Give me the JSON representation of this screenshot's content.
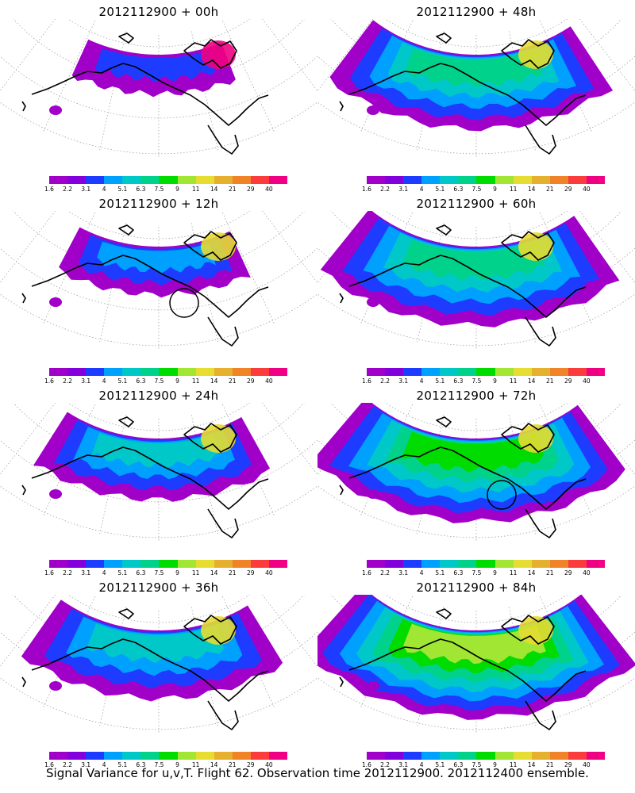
{
  "palette": [
    "#a000c8",
    "#8200dc",
    "#1e3cff",
    "#00a0ff",
    "#00c8c8",
    "#00d28c",
    "#00dc00",
    "#a0e632",
    "#e6dc32",
    "#e6af2d",
    "#f08228",
    "#fa3c3c",
    "#f00082"
  ],
  "colorbar_labels": [
    "1.6",
    "2.2",
    "3.1",
    "4",
    "5.1",
    "6.3",
    "7.5",
    "9",
    "11",
    "14",
    "21",
    "29",
    "40"
  ],
  "footer": "Signal Variance for u,v,T. Flight 62. Observation time 2012112900. 2012112400 ensemble.",
  "panels": [
    {
      "title": "2012112900 + 00h",
      "spread": 0.45,
      "level": 0.05,
      "max_level": 12,
      "observation_circle": false
    },
    {
      "title": "2012112900 + 48h",
      "spread": 0.85,
      "level": 0.35,
      "max_level": 8,
      "observation_circle": false
    },
    {
      "title": "2012112900 + 12h",
      "spread": 0.55,
      "level": 0.12,
      "max_level": 8,
      "observation_circle": true
    },
    {
      "title": "2012112900 + 60h",
      "spread": 0.9,
      "level": 0.42,
      "max_level": 8,
      "observation_circle": false
    },
    {
      "title": "2012112900 + 24h",
      "spread": 0.7,
      "level": 0.2,
      "max_level": 8,
      "observation_circle": false
    },
    {
      "title": "2012112900 + 72h",
      "spread": 0.95,
      "level": 0.5,
      "max_level": 8,
      "observation_circle": true
    },
    {
      "title": "2012112900 + 36h",
      "spread": 0.78,
      "level": 0.28,
      "max_level": 8,
      "observation_circle": false
    },
    {
      "title": "2012112900 + 84h",
      "spread": 1.0,
      "level": 0.6,
      "max_level": 8,
      "observation_circle": false
    }
  ]
}
